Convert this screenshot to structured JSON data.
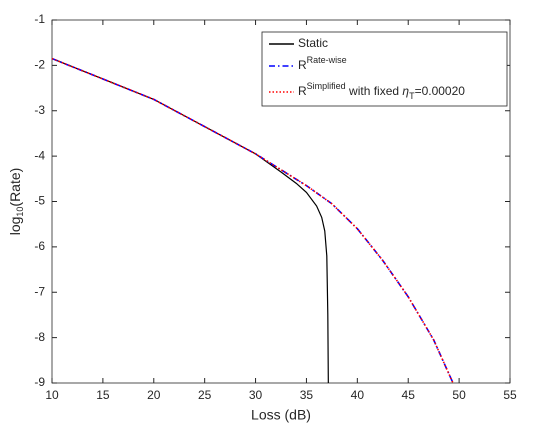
{
  "chart_data": {
    "type": "line",
    "xlabel": "Loss (dB)",
    "ylabel": [
      [
        "log",
        ""
      ],
      [
        "10",
        "sub"
      ],
      [
        "(Rate)",
        ""
      ]
    ],
    "xlim": [
      10,
      55
    ],
    "xticks": [
      10,
      15,
      20,
      25,
      30,
      35,
      40,
      45,
      50,
      55
    ],
    "ylim": [
      -9,
      -1
    ],
    "yticks": [
      -9,
      -8,
      -7,
      -6,
      -5,
      -4,
      -3,
      -2,
      -1
    ],
    "grid": false,
    "legend": "upper right",
    "series": [
      {
        "name": [
          [
            "Static",
            ""
          ]
        ],
        "color": "#000000",
        "dash": "solid",
        "x": [
          10,
          15,
          20,
          25,
          30,
          32.5,
          34,
          35,
          36,
          36.5,
          36.8,
          37,
          37.1,
          37.15
        ],
        "values": [
          -1.85,
          -2.3,
          -2.75,
          -3.35,
          -3.95,
          -4.35,
          -4.6,
          -4.8,
          -5.1,
          -5.35,
          -5.65,
          -6.2,
          -7.5,
          -9
        ]
      },
      {
        "name": [
          [
            "R",
            ""
          ],
          [
            "Rate-wise",
            "sup"
          ]
        ],
        "color": "#0000ff",
        "dash": "dashdot",
        "x": [
          10,
          15,
          20,
          25,
          30,
          32.5,
          35,
          37.5,
          40,
          42.5,
          45,
          47.5,
          49.4
        ],
        "values": [
          -1.85,
          -2.3,
          -2.75,
          -3.35,
          -3.95,
          -4.3,
          -4.65,
          -5.05,
          -5.6,
          -6.3,
          -7.1,
          -8.05,
          -9
        ]
      },
      {
        "name": [
          [
            "R",
            ""
          ],
          [
            "Simplified",
            "sup"
          ],
          [
            " with fixed ",
            ""
          ],
          [
            "η",
            "italic"
          ],
          [
            "T",
            "sub"
          ],
          [
            "=0.00020",
            ""
          ]
        ],
        "color": "#ff0000",
        "dash": "dotted",
        "x": [
          10,
          15,
          20,
          25,
          30,
          32.5,
          35,
          37.5,
          40,
          42.5,
          45,
          47.5,
          49.4
        ],
        "values": [
          -1.85,
          -2.3,
          -2.75,
          -3.35,
          -3.95,
          -4.3,
          -4.65,
          -5.05,
          -5.6,
          -6.3,
          -7.1,
          -8.05,
          -9
        ]
      }
    ]
  }
}
